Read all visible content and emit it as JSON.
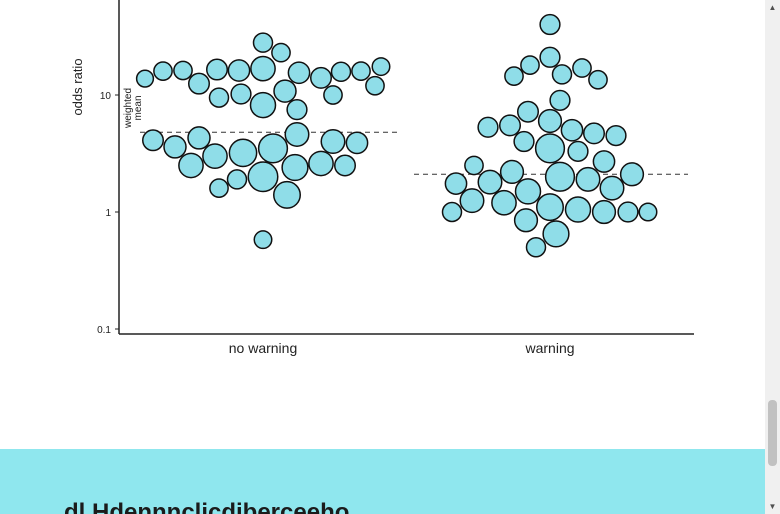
{
  "chart_data": {
    "type": "scatter",
    "ylabel": "odds ratio",
    "yscale": "log",
    "ylim": [
      0.1,
      60
    ],
    "yticks": [
      {
        "value": 0.1,
        "label": "0.1"
      },
      {
        "value": 1,
        "label": "1"
      },
      {
        "value": 10,
        "label": "10"
      }
    ],
    "categories": [
      "no warning",
      "warning"
    ],
    "mean_annotation": "weighted mean",
    "weighted_means": [
      4.8,
      2.1
    ],
    "point_color": "#8fdde8",
    "series": [
      {
        "category": "no warning",
        "points": [
          {
            "v": 28,
            "w": 0.6
          },
          {
            "v": 23,
            "w": 0.55
          },
          {
            "v": 17.5,
            "w": 0.5
          },
          {
            "v": 16.8,
            "w": 0.95
          },
          {
            "v": 16.5,
            "w": 0.7
          },
          {
            "v": 16.2,
            "w": 0.55
          },
          {
            "v": 16.2,
            "w": 0.75
          },
          {
            "v": 16,
            "w": 0.55
          },
          {
            "v": 16,
            "w": 0.55
          },
          {
            "v": 15.5,
            "w": 0.75
          },
          {
            "v": 15.8,
            "w": 0.6
          },
          {
            "v": 14,
            "w": 0.7
          },
          {
            "v": 13.8,
            "w": 0.45
          },
          {
            "v": 12.5,
            "w": 0.7
          },
          {
            "v": 12,
            "w": 0.55
          },
          {
            "v": 10.8,
            "w": 0.8
          },
          {
            "v": 10.2,
            "w": 0.65
          },
          {
            "v": 10,
            "w": 0.55
          },
          {
            "v": 9.5,
            "w": 0.6
          },
          {
            "v": 8.2,
            "w": 1.0
          },
          {
            "v": 7.5,
            "w": 0.65
          },
          {
            "v": 4.6,
            "w": 0.9
          },
          {
            "v": 4.3,
            "w": 0.8
          },
          {
            "v": 4.1,
            "w": 0.7
          },
          {
            "v": 4.0,
            "w": 0.9
          },
          {
            "v": 3.9,
            "w": 0.75
          },
          {
            "v": 3.6,
            "w": 0.8
          },
          {
            "v": 3.5,
            "w": 1.25
          },
          {
            "v": 3.2,
            "w": 1.15
          },
          {
            "v": 3.0,
            "w": 0.95
          },
          {
            "v": 2.6,
            "w": 0.95
          },
          {
            "v": 2.5,
            "w": 0.95
          },
          {
            "v": 2.5,
            "w": 0.7
          },
          {
            "v": 2.4,
            "w": 1.05
          },
          {
            "v": 2.0,
            "w": 1.3
          },
          {
            "v": 1.9,
            "w": 0.6
          },
          {
            "v": 1.6,
            "w": 0.55
          },
          {
            "v": 1.4,
            "w": 1.1
          },
          {
            "v": 0.58,
            "w": 0.5
          }
        ]
      },
      {
        "category": "warning",
        "points": [
          {
            "v": 40,
            "w": 0.65
          },
          {
            "v": 21,
            "w": 0.65
          },
          {
            "v": 18,
            "w": 0.55
          },
          {
            "v": 17,
            "w": 0.55
          },
          {
            "v": 15,
            "w": 0.6
          },
          {
            "v": 14.5,
            "w": 0.55
          },
          {
            "v": 13.5,
            "w": 0.55
          },
          {
            "v": 9.0,
            "w": 0.65
          },
          {
            "v": 7.2,
            "w": 0.7
          },
          {
            "v": 6.0,
            "w": 0.85
          },
          {
            "v": 5.5,
            "w": 0.7
          },
          {
            "v": 5.3,
            "w": 0.65
          },
          {
            "v": 5.0,
            "w": 0.75
          },
          {
            "v": 4.7,
            "w": 0.7
          },
          {
            "v": 4.5,
            "w": 0.65
          },
          {
            "v": 4.0,
            "w": 0.65
          },
          {
            "v": 3.5,
            "w": 1.25
          },
          {
            "v": 3.3,
            "w": 0.65
          },
          {
            "v": 2.7,
            "w": 0.75
          },
          {
            "v": 2.5,
            "w": 0.55
          },
          {
            "v": 2.2,
            "w": 0.85
          },
          {
            "v": 2.1,
            "w": 0.85
          },
          {
            "v": 2.0,
            "w": 1.25
          },
          {
            "v": 1.9,
            "w": 0.9
          },
          {
            "v": 1.8,
            "w": 0.9
          },
          {
            "v": 1.75,
            "w": 0.75
          },
          {
            "v": 1.6,
            "w": 0.9
          },
          {
            "v": 1.5,
            "w": 1.0
          },
          {
            "v": 1.25,
            "w": 0.9
          },
          {
            "v": 1.2,
            "w": 0.95
          },
          {
            "v": 1.1,
            "w": 1.1
          },
          {
            "v": 1.05,
            "w": 1.0
          },
          {
            "v": 1.0,
            "w": 0.85
          },
          {
            "v": 1.0,
            "w": 0.6
          },
          {
            "v": 1.0,
            "w": 0.65
          },
          {
            "v": 1.0,
            "w": 0.5
          },
          {
            "v": 0.85,
            "w": 0.85
          },
          {
            "v": 0.65,
            "w": 1.05
          },
          {
            "v": 0.5,
            "w": 0.6
          }
        ]
      }
    ]
  },
  "banner": {
    "text": "dl.Hdennnclicdiberceeho",
    "color": "#8fe7ee"
  },
  "scrollbar": {
    "up_icon": "triangle-up-icon",
    "down_icon": "triangle-down-icon"
  }
}
